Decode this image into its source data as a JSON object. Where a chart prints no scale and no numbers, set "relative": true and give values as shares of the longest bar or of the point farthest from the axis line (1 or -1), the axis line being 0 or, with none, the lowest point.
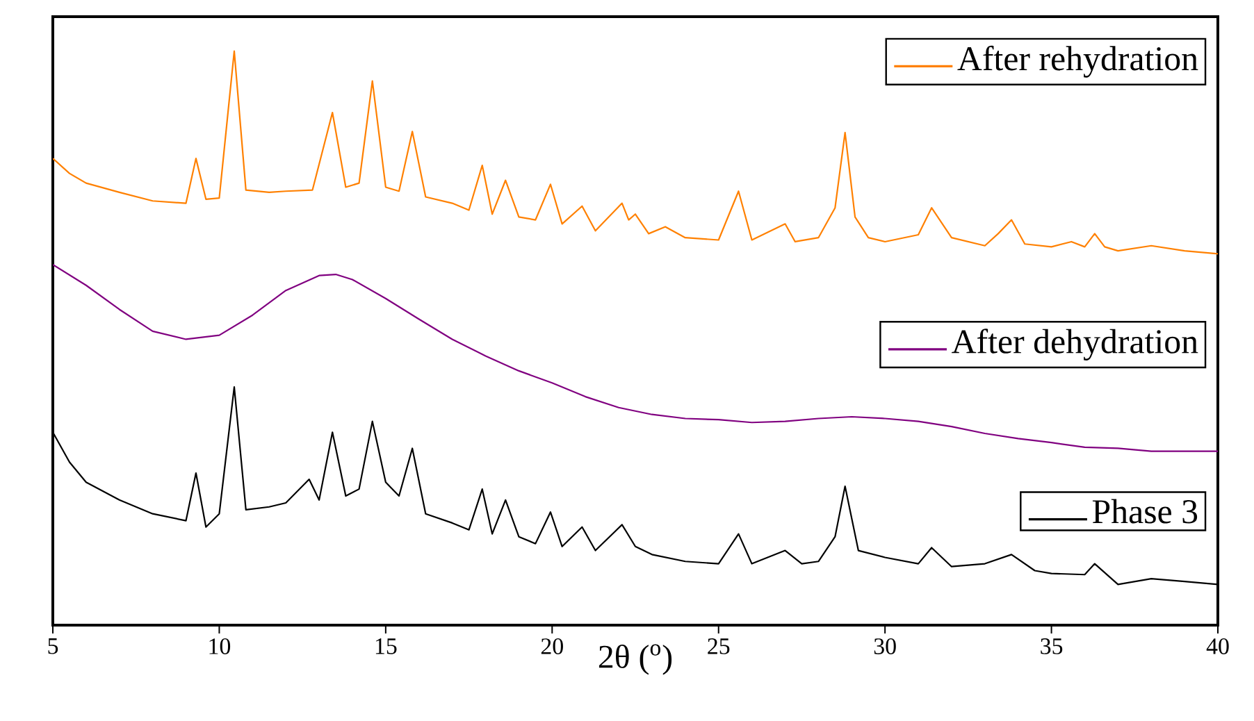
{
  "chart_data": {
    "type": "line",
    "relative": true,
    "xlabel": "2θ ($^{o}$)",
    "xlim": [
      5,
      40
    ],
    "xticks": [
      5,
      10,
      15,
      20,
      25,
      30,
      35,
      40
    ],
    "tick_labels": "x",
    "legend": "right",
    "series": [
      {
        "name": "After rehydration",
        "color": "#ff8000",
        "x": [
          5,
          5.5,
          6,
          7,
          8,
          9,
          9.3,
          9.6,
          10,
          10.45,
          10.8,
          11.5,
          12,
          12.8,
          13.4,
          13.8,
          14.2,
          14.6,
          15,
          15.4,
          15.8,
          16.2,
          17,
          17.5,
          17.9,
          18.2,
          18.6,
          19,
          19.5,
          19.95,
          20.3,
          20.9,
          21.3,
          22.1,
          22.3,
          22.5,
          22.9,
          23.4,
          24,
          25,
          25.6,
          26,
          27,
          27.3,
          28,
          28.5,
          28.8,
          29.1,
          29.5,
          30,
          31,
          31.4,
          32,
          33,
          33.4,
          33.8,
          34.2,
          35,
          35.6,
          36,
          36.3,
          36.6,
          37,
          38,
          39,
          40
        ],
        "values": [
          0.813,
          0.787,
          0.77,
          0.754,
          0.739,
          0.735,
          0.813,
          0.742,
          0.744,
          1,
          0.758,
          0.754,
          0.756,
          0.758,
          0.893,
          0.763,
          0.77,
          0.948,
          0.763,
          0.756,
          0.86,
          0.746,
          0.735,
          0.723,
          0.801,
          0.716,
          0.775,
          0.711,
          0.706,
          0.768,
          0.699,
          0.73,
          0.687,
          0.735,
          0.706,
          0.716,
          0.682,
          0.694,
          0.675,
          0.671,
          0.756,
          0.671,
          0.699,
          0.668,
          0.675,
          0.727,
          0.858,
          0.711,
          0.675,
          0.668,
          0.68,
          0.727,
          0.675,
          0.661,
          0.682,
          0.706,
          0.664,
          0.659,
          0.668,
          0.659,
          0.682,
          0.659,
          0.652,
          0.661,
          0.652,
          0.647
        ]
      },
      {
        "name": "After dehydration",
        "color": "#800080",
        "x": [
          5,
          6,
          7,
          8,
          9,
          10,
          11,
          12,
          13,
          13.5,
          14,
          15,
          16,
          17,
          18,
          19,
          20,
          21,
          22,
          23,
          24,
          25,
          26,
          27,
          28,
          29,
          30,
          31,
          32,
          33,
          34,
          35,
          36,
          37,
          38,
          40
        ],
        "values": [
          0.628,
          0.592,
          0.55,
          0.512,
          0.498,
          0.505,
          0.54,
          0.583,
          0.609,
          0.611,
          0.602,
          0.569,
          0.533,
          0.498,
          0.469,
          0.443,
          0.422,
          0.398,
          0.379,
          0.367,
          0.36,
          0.358,
          0.353,
          0.355,
          0.36,
          0.363,
          0.36,
          0.355,
          0.346,
          0.334,
          0.325,
          0.318,
          0.31,
          0.308,
          0.303,
          0.303
        ]
      },
      {
        "name": "Phase 3",
        "color": "#000000",
        "x": [
          5,
          5.5,
          6,
          7,
          8,
          9,
          9.3,
          9.6,
          10,
          10.45,
          10.8,
          11.5,
          12,
          12.7,
          13,
          13.4,
          13.8,
          14.2,
          14.6,
          15,
          15.4,
          15.8,
          16.2,
          17,
          17.5,
          17.9,
          18.2,
          18.6,
          19,
          19.5,
          19.95,
          20.3,
          20.9,
          21.3,
          22.1,
          22.5,
          23,
          24,
          25,
          25.6,
          26,
          27,
          27.5,
          28,
          28.5,
          28.8,
          29.2,
          30,
          31,
          31.4,
          32,
          33,
          33.8,
          34.5,
          35,
          36,
          36.3,
          37,
          38,
          39,
          40
        ],
        "values": [
          0.336,
          0.284,
          0.249,
          0.218,
          0.194,
          0.182,
          0.265,
          0.171,
          0.194,
          0.415,
          0.201,
          0.206,
          0.213,
          0.254,
          0.218,
          0.336,
          0.225,
          0.237,
          0.355,
          0.249,
          0.225,
          0.308,
          0.194,
          0.178,
          0.166,
          0.237,
          0.159,
          0.218,
          0.154,
          0.142,
          0.197,
          0.137,
          0.171,
          0.13,
          0.175,
          0.137,
          0.123,
          0.111,
          0.107,
          0.159,
          0.107,
          0.13,
          0.107,
          0.111,
          0.154,
          0.242,
          0.13,
          0.118,
          0.107,
          0.135,
          0.102,
          0.107,
          0.123,
          0.095,
          0.09,
          0.088,
          0.107,
          0.071,
          0.081,
          0.076,
          0.071
        ]
      }
    ]
  }
}
